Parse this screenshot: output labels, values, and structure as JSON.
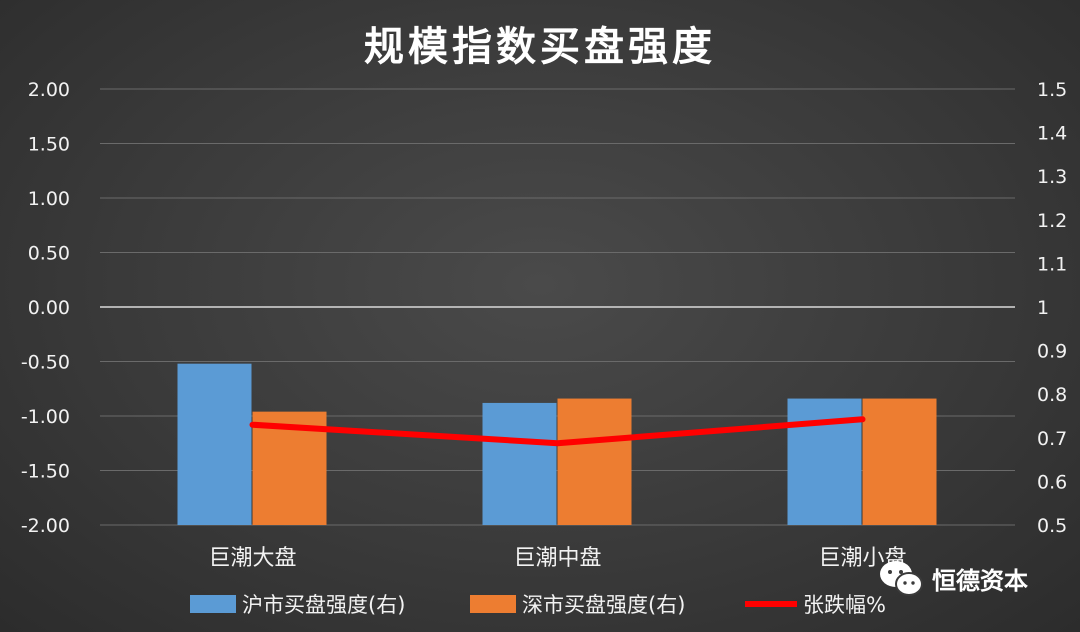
{
  "chart_data": {
    "type": "bar",
    "title": "规模指数买盘强度",
    "categories": [
      "巨潮大盘",
      "巨潮中盘",
      "巨潮小盘"
    ],
    "series": [
      {
        "name": "沪市买盘强度(右)",
        "kind": "bar",
        "axis": "right",
        "color": "#5b9bd5",
        "values": [
          0.87,
          0.78,
          0.79
        ]
      },
      {
        "name": "深市买盘强度(右)",
        "kind": "bar",
        "axis": "right",
        "color": "#ed7d31",
        "values": [
          0.76,
          0.79,
          0.79
        ]
      },
      {
        "name": "张跌幅%",
        "kind": "line",
        "axis": "left",
        "color": "#ff0000",
        "values": [
          -1.08,
          -1.25,
          -1.03
        ]
      }
    ],
    "left_axis": {
      "ylim": [
        -2.0,
        2.0
      ],
      "ticks": [
        "2.00",
        "1.50",
        "1.00",
        "0.50",
        "0.00",
        "-0.50",
        "-1.00",
        "-1.50",
        "-2.00"
      ]
    },
    "right_axis": {
      "ylim": [
        0.5,
        1.5
      ],
      "ticks": [
        "1.5",
        "1.4",
        "1.3",
        "1.2",
        "1.1",
        "1",
        "0.9",
        "0.8",
        "0.7",
        "0.6",
        "0.5"
      ]
    },
    "grid": true,
    "legend_position": "bottom"
  },
  "watermark": {
    "text": "恒德资本",
    "icon": "wechat-icon"
  }
}
